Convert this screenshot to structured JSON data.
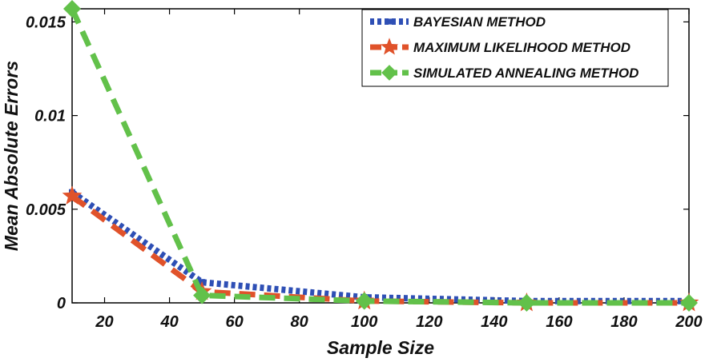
{
  "chart_data": {
    "type": "line",
    "xlabel": "Sample Size",
    "ylabel": "Mean Absolute Errors",
    "xlim": [
      10,
      200
    ],
    "ylim": [
      0,
      0.0157
    ],
    "xticks": [
      20,
      40,
      60,
      80,
      100,
      120,
      140,
      160,
      180,
      200
    ],
    "yticks": [
      0,
      0.005,
      0.01,
      0.015
    ],
    "ytick_labels": [
      "0",
      "0.005",
      "0.01",
      "0.015"
    ],
    "x": [
      10,
      50,
      100,
      150,
      200
    ],
    "series": [
      {
        "name": "BAYESIAN METHOD",
        "values": [
          0.0059,
          0.0011,
          0.0003,
          0.0001,
          0.0001
        ],
        "color": "#2e4fb5",
        "style": "dotted",
        "marker": "square"
      },
      {
        "name": "MAXIMUM LIKELIHOOD METHOD",
        "values": [
          0.0057,
          0.0006,
          0.0001,
          0.0,
          0.0
        ],
        "color": "#e0522a",
        "style": "dashed",
        "marker": "star"
      },
      {
        "name": "SIMULATED ANNEALING METHOD",
        "values": [
          0.0157,
          0.0004,
          0.0001,
          0.0,
          0.0
        ],
        "color": "#62c14a",
        "style": "dashed",
        "marker": "diamond"
      }
    ],
    "legend_position": "top-right",
    "grid": false
  }
}
